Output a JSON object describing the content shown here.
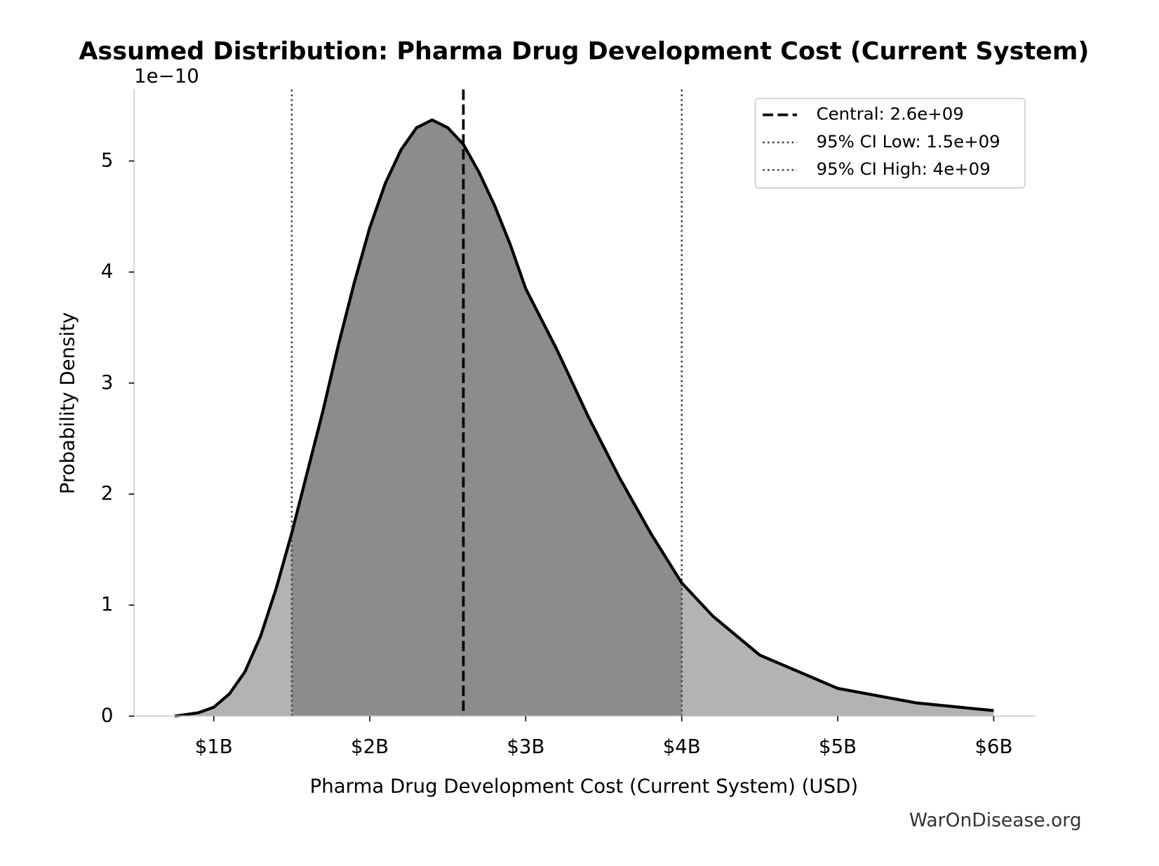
{
  "chart_data": {
    "type": "density",
    "title": "Assumed Distribution: Pharma Drug Development Cost (Current System)",
    "x_label": "Pharma Drug Development Cost (Current System) (USD)",
    "y_label": "Probability Density",
    "y_offset_label": "1e−10",
    "source": "WarOnDisease.org",
    "x": [
      750000000,
      900000000,
      1000000000,
      1100000000,
      1200000000,
      1300000000,
      1400000000,
      1500000000,
      1600000000,
      1700000000,
      1800000000,
      1900000000,
      2000000000,
      2100000000,
      2200000000,
      2300000000,
      2400000000,
      2500000000,
      2600000000,
      2700000000,
      2800000000,
      2900000000,
      3000000000,
      3200000000,
      3400000000,
      3600000000,
      3800000000,
      4000000000,
      4200000000,
      4500000000,
      5000000000,
      5500000000,
      6000000000
    ],
    "values": [
      0.0,
      0.03,
      0.08,
      0.2,
      0.4,
      0.72,
      1.15,
      1.65,
      2.2,
      2.75,
      3.35,
      3.9,
      4.4,
      4.8,
      5.1,
      5.3,
      5.37,
      5.3,
      5.15,
      4.9,
      4.6,
      4.25,
      3.85,
      3.3,
      2.7,
      2.15,
      1.65,
      1.2,
      0.9,
      0.55,
      0.25,
      0.12,
      0.05
    ],
    "line_color": "#000000",
    "fill_color": "#b3b3b3",
    "ci_fill_color": "#8c8c8c",
    "reference_lines": [
      {
        "name": "Central: 2.6e+09",
        "value": 2600000000,
        "style": "dashed",
        "color": "#000000"
      },
      {
        "name": "95% CI Low: 1.5e+09",
        "value": 1500000000,
        "style": "dotted",
        "color": "#444444"
      },
      {
        "name": "95% CI High: 4e+09",
        "value": 4000000000,
        "style": "dotted",
        "color": "#444444"
      }
    ],
    "xlim": [
      489000000,
      6267000000
    ],
    "xticks": [
      {
        "value": 1000000000,
        "label": "$1B"
      },
      {
        "value": 2000000000,
        "label": "$2B"
      },
      {
        "value": 3000000000,
        "label": "$3B"
      },
      {
        "value": 4000000000,
        "label": "$4B"
      },
      {
        "value": 5000000000,
        "label": "$5B"
      },
      {
        "value": 6000000000,
        "label": "$6B"
      }
    ],
    "ylim": [
      0,
      5.644
    ],
    "yticks": [
      0,
      1,
      2,
      3,
      4,
      5
    ],
    "legend": "upper right"
  }
}
